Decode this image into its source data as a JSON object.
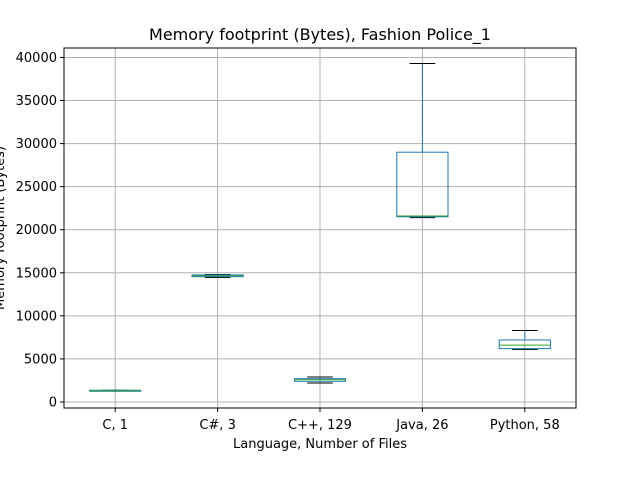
{
  "chart_data": {
    "type": "box",
    "title": "Memory footprint (Bytes), Fashion Police_1",
    "xlabel": "Language, Number of Files",
    "ylabel": "Memory footprint (Bytes)",
    "ylim": [
      -700,
      41100
    ],
    "yticks": [
      0,
      5000,
      10000,
      15000,
      20000,
      25000,
      30000,
      35000,
      40000
    ],
    "grid": true,
    "categories": [
      "C, 1",
      "C#, 3",
      "C++, 129",
      "Java, 26",
      "Python, 58"
    ],
    "boxes": [
      {
        "label": "C, 1",
        "whisker_low": 1320,
        "q1": 1320,
        "median": 1320,
        "q3": 1360,
        "whisker_high": 1360
      },
      {
        "label": "C#, 3",
        "whisker_low": 14450,
        "q1": 14550,
        "median": 14650,
        "q3": 14750,
        "whisker_high": 14800
      },
      {
        "label": "C++, 129",
        "whisker_low": 2200,
        "q1": 2400,
        "median": 2600,
        "q3": 2700,
        "whisker_high": 2900
      },
      {
        "label": "Java, 26",
        "whisker_low": 21400,
        "q1": 21500,
        "median": 21600,
        "q3": 29000,
        "whisker_high": 39300
      },
      {
        "label": "Python, 58",
        "whisker_low": 6100,
        "q1": 6200,
        "median": 6600,
        "q3": 7200,
        "whisker_high": 8300
      }
    ],
    "colors": {
      "box": "#1f77b4",
      "median": "#2ca02c",
      "whisker_cap": "#000000",
      "grid": "#b0b0b0"
    }
  }
}
